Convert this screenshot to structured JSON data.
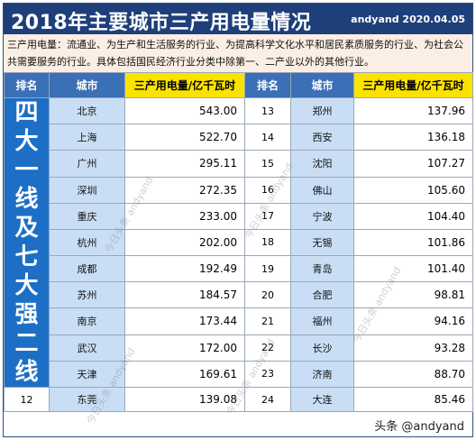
{
  "header": {
    "title": "2018年主要城市三产用电量情况",
    "credit": "andyand 2020.04.05"
  },
  "description": "三产用电量：流通业、为生产和生活服务的行业、为提高科学文化水平和居民素质服务的行业、为社会公共需要服务的行业。具体包括国民经济行业分类中除第一、二产业以外的其他行业。",
  "columns": {
    "rank": "排名",
    "city": "城市",
    "value": "三产用电量/亿千瓦时"
  },
  "group_label": [
    "四",
    "大",
    "一",
    "线",
    "及",
    "七",
    "大",
    "强",
    "二",
    "线"
  ],
  "left_rows": [
    {
      "city": "北京",
      "value": "543.00"
    },
    {
      "city": "上海",
      "value": "522.70"
    },
    {
      "city": "广州",
      "value": "295.11"
    },
    {
      "city": "深圳",
      "value": "272.35"
    },
    {
      "city": "重庆",
      "value": "233.00"
    },
    {
      "city": "杭州",
      "value": "202.00"
    },
    {
      "city": "成都",
      "value": "192.49"
    },
    {
      "city": "苏州",
      "value": "184.57"
    },
    {
      "city": "南京",
      "value": "173.44"
    },
    {
      "city": "武汉",
      "value": "172.00"
    },
    {
      "city": "天津",
      "value": "169.61"
    },
    {
      "rank": "12",
      "city": "东莞",
      "value": "139.08"
    }
  ],
  "right_rows": [
    {
      "rank": "13",
      "city": "郑州",
      "value": "137.96"
    },
    {
      "rank": "14",
      "city": "西安",
      "value": "136.18"
    },
    {
      "rank": "15",
      "city": "沈阳",
      "value": "107.27"
    },
    {
      "rank": "16",
      "city": "佛山",
      "value": "105.60"
    },
    {
      "rank": "17",
      "city": "宁波",
      "value": "104.40"
    },
    {
      "rank": "18",
      "city": "无锡",
      "value": "101.86"
    },
    {
      "rank": "19",
      "city": "青岛",
      "value": "101.40"
    },
    {
      "rank": "20",
      "city": "合肥",
      "value": "98.81"
    },
    {
      "rank": "21",
      "city": "福州",
      "value": "94.16"
    },
    {
      "rank": "22",
      "city": "长沙",
      "value": "93.28"
    },
    {
      "rank": "23",
      "city": "济南",
      "value": "88.70"
    },
    {
      "rank": "24",
      "city": "大连",
      "value": "85.46"
    }
  ],
  "watermark": "今日头条 andyand",
  "footer_mark": "头条 @andyand"
}
